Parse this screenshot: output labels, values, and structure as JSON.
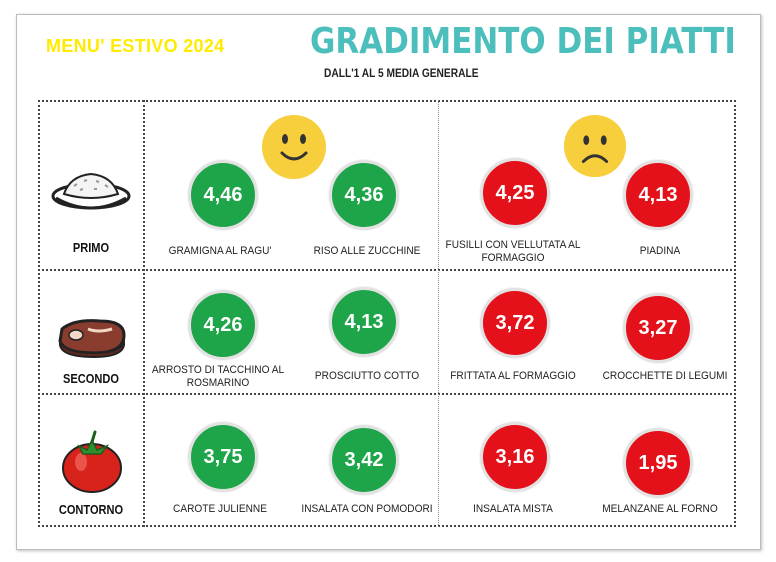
{
  "header": {
    "menu_label": "MENU' ESTIVO 2024",
    "title": "GRADIMENTO DEI PIATTI",
    "subtitle": "DALL'1 AL 5 MEDIA GENERALE"
  },
  "colors": {
    "good": "#1ea549",
    "bad": "#e4101a",
    "title": "#4cbfbc",
    "menu_label": "#ffeb00"
  },
  "moods": {
    "left": "happy-face-icon",
    "right": "sad-face-icon"
  },
  "categories": [
    {
      "label": "PRIMO",
      "icon": "rice-plate-icon"
    },
    {
      "label": "SECONDO",
      "icon": "steak-icon"
    },
    {
      "label": "CONTORNO",
      "icon": "tomato-icon"
    }
  ],
  "rows": [
    [
      {
        "score": "4,46",
        "name": "GRAMIGNA AL RAGU'",
        "rating": "good"
      },
      {
        "score": "4,36",
        "name": "RISO ALLE ZUCCHINE",
        "rating": "good"
      },
      {
        "score": "4,25",
        "name": "FUSILLI CON VELLUTATA AL FORMAGGIO",
        "rating": "bad"
      },
      {
        "score": "4,13",
        "name": "PIADINA",
        "rating": "bad"
      }
    ],
    [
      {
        "score": "4,26",
        "name": "ARROSTO DI TACCHINO AL ROSMARINO",
        "rating": "good"
      },
      {
        "score": "4,13",
        "name": "PROSCIUTTO COTTO",
        "rating": "good"
      },
      {
        "score": "3,72",
        "name": "FRITTATA AL FORMAGGIO",
        "rating": "bad"
      },
      {
        "score": "3,27",
        "name": "CROCCHETTE DI LEGUMI",
        "rating": "bad"
      }
    ],
    [
      {
        "score": "3,75",
        "name": "CAROTE JULIENNE",
        "rating": "good"
      },
      {
        "score": "3,42",
        "name": "INSALATA CON POMODORI",
        "rating": "good"
      },
      {
        "score": "3,16",
        "name": "INSALATA MISTA",
        "rating": "bad"
      },
      {
        "score": "1,95",
        "name": "MELANZANE AL FORNO",
        "rating": "bad"
      }
    ]
  ]
}
